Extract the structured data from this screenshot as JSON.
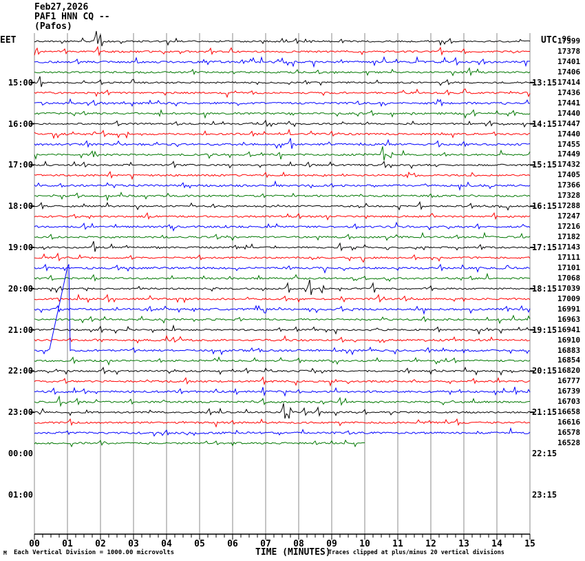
{
  "header": {
    "date": "Feb27,2026",
    "station": "PAF1 HNN CQ --",
    "location": "(Pafos)",
    "left_timezone": "EET",
    "right_timezone": "UTC"
  },
  "footer": {
    "watermark": "M",
    "scale_note": "Each Vertical Division = 1000.00 microvolts",
    "axis_title": "TIME (MINUTES)",
    "clip_note": "Traces clipped at plus/minus 20 vertical divisions"
  },
  "colors": {
    "trace_cycle": [
      "#000000",
      "#ff0000",
      "#0000ff",
      "#007700"
    ],
    "grid": "#888888",
    "axis": "#000000"
  },
  "chart_data": {
    "type": "line",
    "subtype": "helicorder-seismogram",
    "title": "PAF1 HNN CQ -- (Pafos) Feb27,2026",
    "xlabel": "TIME (MINUTES)",
    "x_range_minutes": [
      0,
      15
    ],
    "x_tick_labels": [
      "00",
      "01",
      "02",
      "03",
      "04",
      "05",
      "06",
      "07",
      "08",
      "09",
      "10",
      "11",
      "12",
      "13",
      "14",
      "15"
    ],
    "minutes_per_row": 15,
    "clip_divisions": 20,
    "microvolts_per_division": "1000.00",
    "hour_labels": [
      {
        "row": 5,
        "eet": "15:00",
        "utc": "13:15"
      },
      {
        "row": 9,
        "eet": "16:00",
        "utc": "14:15"
      },
      {
        "row": 13,
        "eet": "17:00",
        "utc": "15:15"
      },
      {
        "row": 17,
        "eet": "18:00",
        "utc": "16:15"
      },
      {
        "row": 21,
        "eet": "19:00",
        "utc": "17:15"
      },
      {
        "row": 25,
        "eet": "20:00",
        "utc": "18:15"
      },
      {
        "row": 29,
        "eet": "21:00",
        "utc": "19:15"
      },
      {
        "row": 33,
        "eet": "22:00",
        "utc": "20:15"
      },
      {
        "row": 37,
        "eet": "23:00",
        "utc": "21:15"
      },
      {
        "row": 41,
        "eet": "00:00",
        "utc": "22:15"
      },
      {
        "row": 45,
        "eet": "01:00",
        "utc": "23:15"
      }
    ],
    "rows": [
      {
        "count": "17399",
        "count_overlay": "96",
        "color": "black",
        "events": [
          [
            1.88,
            15
          ],
          [
            1.95,
            -9
          ],
          [
            2.0,
            10
          ],
          [
            7.9,
            4
          ],
          [
            9.3,
            3
          ],
          [
            12.6,
            4
          ]
        ]
      },
      {
        "count": "17378",
        "color": "red",
        "events": [
          [
            0.05,
            -13
          ],
          [
            0.08,
            5
          ],
          [
            0.9,
            4
          ],
          [
            1.9,
            7
          ],
          [
            5.35,
            5
          ],
          [
            12.3,
            6
          ],
          [
            13.0,
            4
          ]
        ]
      },
      {
        "count": "17401",
        "color": "blue",
        "events": [
          [
            1.3,
            4
          ],
          [
            6.3,
            3
          ],
          [
            12.75,
            6
          ],
          [
            13.6,
            4
          ]
        ]
      },
      {
        "count": "17406",
        "color": "green",
        "events": [
          [
            4.8,
            4
          ],
          [
            8.6,
            3
          ],
          [
            13.15,
            6
          ]
        ]
      },
      {
        "count": "17414",
        "color": "black",
        "events": [
          [
            0.15,
            9
          ],
          [
            2.0,
            4
          ],
          [
            8.2,
            3
          ],
          [
            12.5,
            4
          ]
        ]
      },
      {
        "count": "17436",
        "color": "red",
        "events": [
          [
            2.2,
            4
          ],
          [
            6.6,
            3
          ],
          [
            12.5,
            4
          ]
        ]
      },
      {
        "count": "17441",
        "color": "blue",
        "events": [
          [
            1.8,
            4
          ],
          [
            9.8,
            3
          ],
          [
            12.3,
            5
          ]
        ]
      },
      {
        "count": "17440",
        "color": "green",
        "events": [
          [
            1.5,
            3
          ],
          [
            10.2,
            4
          ],
          [
            13.3,
            5
          ],
          [
            14.5,
            4
          ]
        ]
      },
      {
        "count": "17447",
        "color": "black",
        "events": [
          [
            2.5,
            4
          ],
          [
            4.3,
            3
          ],
          [
            7.0,
            5
          ],
          [
            13.8,
            4
          ]
        ]
      },
      {
        "count": "17440",
        "color": "red",
        "events": [
          [
            2.1,
            5
          ],
          [
            6.6,
            4
          ],
          [
            9.0,
            4
          ],
          [
            13.9,
            3
          ]
        ]
      },
      {
        "count": "17455",
        "color": "blue",
        "events": [
          [
            1.6,
            5
          ],
          [
            7.75,
            9
          ],
          [
            12.2,
            5
          ],
          [
            13.0,
            4
          ]
        ]
      },
      {
        "count": "17449",
        "color": "green",
        "events": [
          [
            1.75,
            5
          ],
          [
            6.5,
            4
          ],
          [
            10.55,
            12
          ],
          [
            12.4,
            3
          ]
        ]
      },
      {
        "count": "17432",
        "color": "black",
        "events": [
          [
            1.5,
            4
          ],
          [
            4.2,
            5
          ],
          [
            8.3,
            4
          ],
          [
            10.6,
            5
          ]
        ]
      },
      {
        "count": "17405",
        "color": "red",
        "events": [
          [
            2.3,
            5
          ],
          [
            7.0,
            4
          ],
          [
            11.5,
            3
          ]
        ]
      },
      {
        "count": "17366",
        "color": "blue",
        "events": [
          [
            0.8,
            3
          ],
          [
            4.5,
            4
          ],
          [
            9.0,
            3
          ]
        ]
      },
      {
        "count": "17328",
        "color": "green",
        "events": [
          [
            1.3,
            4
          ],
          [
            6.9,
            3
          ],
          [
            12.0,
            3
          ]
        ]
      },
      {
        "count": "17288",
        "color": "black",
        "events": [
          [
            0.2,
            5
          ],
          [
            5.4,
            3
          ],
          [
            11.65,
            6
          ],
          [
            13.2,
            4
          ]
        ]
      },
      {
        "count": "17247",
        "color": "red",
        "events": [
          [
            1.2,
            3
          ],
          [
            3.4,
            5
          ],
          [
            8.0,
            4
          ],
          [
            13.9,
            5
          ]
        ]
      },
      {
        "count": "17216",
        "color": "blue",
        "events": [
          [
            1.5,
            5
          ],
          [
            4.1,
            3
          ],
          [
            9.7,
            4
          ],
          [
            13.4,
            4
          ]
        ]
      },
      {
        "count": "17182",
        "color": "green",
        "events": [
          [
            0.5,
            4
          ],
          [
            5.5,
            4
          ],
          [
            9.5,
            4
          ],
          [
            12.8,
            3
          ]
        ]
      },
      {
        "count": "17143",
        "color": "black",
        "events": [
          [
            1.8,
            9
          ],
          [
            6.1,
            3
          ],
          [
            9.25,
            6
          ],
          [
            13.5,
            4
          ]
        ]
      },
      {
        "count": "17111",
        "color": "red",
        "events": [
          [
            0.7,
            6
          ],
          [
            2.9,
            3
          ],
          [
            5.0,
            4
          ],
          [
            11.5,
            4
          ]
        ]
      },
      {
        "count": "17101",
        "color": "blue",
        "events": [
          [
            0.35,
            5
          ],
          [
            2.5,
            4
          ],
          [
            7.7,
            3
          ],
          [
            12.3,
            5
          ]
        ]
      },
      {
        "count": "17068",
        "color": "green",
        "events": [
          [
            0.5,
            4
          ],
          [
            1.8,
            5
          ],
          [
            10.0,
            3
          ],
          [
            13.2,
            3
          ]
        ]
      },
      {
        "count": "17039",
        "color": "black",
        "events": [
          [
            0.8,
            3
          ],
          [
            7.65,
            8
          ],
          [
            8.35,
            13
          ],
          [
            8.7,
            -6
          ],
          [
            10.25,
            8
          ],
          [
            12.0,
            4
          ]
        ]
      },
      {
        "count": "17009",
        "color": "red",
        "events": [
          [
            2.2,
            6
          ],
          [
            7.6,
            4
          ],
          [
            10.4,
            6
          ],
          [
            11.2,
            4
          ]
        ]
      },
      {
        "count": "16991",
        "color": "blue",
        "events": [
          [
            0.7,
            5
          ],
          [
            3.5,
            4
          ],
          [
            9.3,
            4
          ],
          [
            14.3,
            4
          ]
        ]
      },
      {
        "count": "16963",
        "color": "green",
        "events": [
          [
            1.7,
            4
          ],
          [
            6.2,
            3
          ],
          [
            11.8,
            4
          ]
        ]
      },
      {
        "count": "16941",
        "color": "black",
        "events": [
          [
            2.0,
            5
          ],
          [
            7.4,
            3
          ],
          [
            12.2,
            4
          ]
        ]
      },
      {
        "count": "16910",
        "color": "red",
        "events": [
          [
            1.1,
            3
          ],
          [
            4.2,
            4
          ],
          [
            9.3,
            4
          ]
        ]
      },
      {
        "count": "16883",
        "color": "blue",
        "events": [
          [
            3.0,
            4
          ],
          [
            6.8,
            3
          ],
          [
            11.9,
            4
          ]
        ],
        "anomaly": {
          "ramp_start_minute": 0.45,
          "ramp_peak_minute": 1.02,
          "drop_minute": 1.06,
          "clip_divisions": 20
        }
      },
      {
        "count": "16854",
        "color": "green",
        "events": [
          [
            1.15,
            5
          ],
          [
            3.8,
            3
          ],
          [
            8.0,
            4
          ],
          [
            12.7,
            4
          ]
        ]
      },
      {
        "count": "16820",
        "color": "black",
        "events": [
          [
            2.1,
            5
          ],
          [
            6.4,
            4
          ],
          [
            11.3,
            4
          ]
        ]
      },
      {
        "count": "16777",
        "color": "red",
        "events": [
          [
            0.9,
            4
          ],
          [
            4.6,
            5
          ],
          [
            6.9,
            6
          ],
          [
            13.3,
            4
          ]
        ]
      },
      {
        "count": "16739",
        "color": "blue",
        "events": [
          [
            0.6,
            5
          ],
          [
            1.5,
            4
          ],
          [
            4.4,
            4
          ],
          [
            8.0,
            3
          ]
        ]
      },
      {
        "count": "16703",
        "color": "green",
        "events": [
          [
            0.75,
            8
          ],
          [
            1.3,
            5
          ],
          [
            2.9,
            4
          ],
          [
            6.9,
            5
          ],
          [
            9.25,
            6
          ]
        ]
      },
      {
        "count": "16658",
        "color": "black",
        "events": [
          [
            5.3,
            5
          ],
          [
            7.55,
            13
          ],
          [
            7.7,
            -9
          ],
          [
            8.15,
            6
          ],
          [
            8.6,
            7
          ],
          [
            10.0,
            4
          ]
        ]
      },
      {
        "count": "16616",
        "color": "red",
        "events": [
          [
            1.1,
            5
          ],
          [
            6.0,
            3
          ],
          [
            12.8,
            5
          ]
        ]
      },
      {
        "count": "16578",
        "color": "blue",
        "events": [
          [
            1.0,
            3
          ],
          [
            4.0,
            4
          ],
          [
            9.5,
            3
          ]
        ]
      },
      {
        "count": "16528",
        "color": "green",
        "events": [
          [
            2.0,
            4
          ],
          [
            5.5,
            3
          ],
          [
            8.5,
            3
          ]
        ],
        "end_minute": 10
      }
    ]
  }
}
